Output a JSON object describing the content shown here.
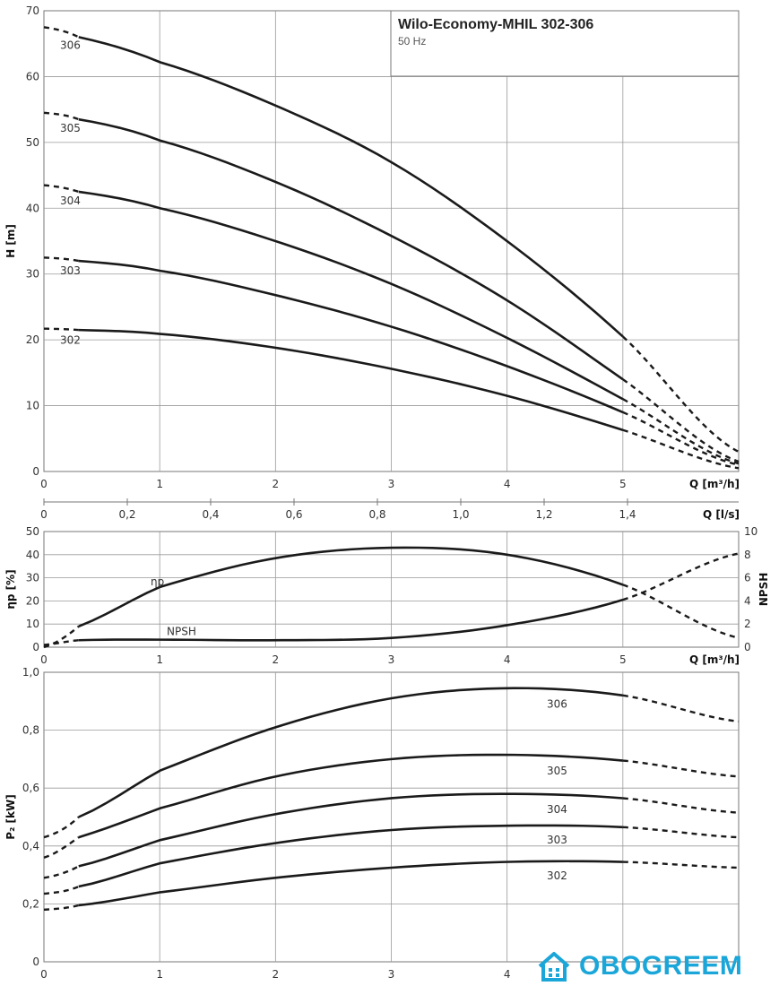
{
  "title": "Wilo-Economy-MHIL 302-306",
  "subtitle": "50 Hz",
  "watermark": "OBOGREEM",
  "colors": {
    "curve": "#1a1a1a",
    "grid": "#9a9a9a",
    "watermark": "#1aa6d9"
  },
  "chart_data": [
    {
      "type": "line",
      "panel": "head",
      "ylabel": "H [m]",
      "xlabel": "Q [m³/h]",
      "xlim": [
        0,
        6
      ],
      "ylim": [
        0,
        70
      ],
      "xticks": [
        0,
        1,
        2,
        3,
        4,
        5
      ],
      "yticks": [
        0,
        10,
        20,
        30,
        40,
        50,
        60,
        70
      ],
      "grid": true,
      "secondary_x": {
        "label": "Q [l/s]",
        "ticks": [
          "0",
          "0,2",
          "0,4",
          "0,6",
          "0,8",
          "1,0",
          "1,2",
          "1,4"
        ],
        "tick_values": [
          0,
          0.2,
          0.4,
          0.6,
          0.8,
          1.0,
          1.2,
          1.4
        ]
      },
      "series": [
        {
          "name": "306",
          "solid_from": 0.3,
          "solid_to": 5,
          "x": [
            0,
            0.3,
            1,
            2,
            3,
            4,
            5,
            6
          ],
          "y": [
            67.5,
            66,
            62.2,
            55.6,
            47,
            35,
            20.5,
            3
          ]
        },
        {
          "name": "305",
          "solid_from": 0.3,
          "solid_to": 5,
          "x": [
            0,
            0.3,
            1,
            2,
            3,
            4,
            5,
            6
          ],
          "y": [
            54.5,
            53.5,
            50.3,
            44,
            35.8,
            26,
            14,
            1.5
          ]
        },
        {
          "name": "304",
          "solid_from": 0.3,
          "solid_to": 5,
          "x": [
            0,
            0.3,
            1,
            2,
            3,
            4,
            5,
            6
          ],
          "y": [
            43.5,
            42.5,
            40,
            35,
            28.5,
            20.3,
            11,
            1.2
          ]
        },
        {
          "name": "303",
          "solid_from": 0.3,
          "solid_to": 5,
          "x": [
            0,
            0.3,
            1,
            2,
            3,
            4,
            5,
            6
          ],
          "y": [
            32.5,
            32,
            30.5,
            26.8,
            22,
            16,
            9,
            1
          ]
        },
        {
          "name": "302",
          "solid_from": 0.3,
          "solid_to": 5,
          "x": [
            0,
            0.3,
            1,
            2,
            3,
            4,
            5,
            6
          ],
          "y": [
            21.7,
            21.5,
            20.9,
            18.8,
            15.6,
            11.5,
            6.3,
            0.5
          ]
        }
      ]
    },
    {
      "type": "line",
      "panel": "efficiency-npsh",
      "ylabel": "ηp [%]",
      "y2label": "NPSH",
      "xlabel": "Q [m³/h]",
      "xlim": [
        0,
        6
      ],
      "ylim": [
        0,
        50
      ],
      "y2lim": [
        0,
        10
      ],
      "xticks": [
        0,
        1,
        2,
        3,
        4,
        5
      ],
      "yticks": [
        0,
        10,
        20,
        30,
        40,
        50
      ],
      "y2ticks": [
        0,
        2,
        4,
        6,
        8,
        10
      ],
      "grid": true,
      "series": [
        {
          "name": "ηp",
          "axis": "left",
          "solid_from": 0.3,
          "solid_to": 5,
          "x": [
            0,
            0.3,
            1,
            2,
            3,
            4,
            5,
            6
          ],
          "y": [
            0,
            9,
            26,
            38.5,
            43,
            40,
            27,
            4
          ]
        },
        {
          "name": "NPSH",
          "axis": "right",
          "solid_from": 0.3,
          "solid_to": 5,
          "x": [
            0,
            0.3,
            1,
            2,
            3,
            4,
            5,
            6
          ],
          "y": [
            0.2,
            0.6,
            0.65,
            0.6,
            0.8,
            1.9,
            4.1,
            8.1
          ]
        }
      ]
    },
    {
      "type": "line",
      "panel": "power",
      "ylabel": "P₂ [kW]",
      "xlabel": "",
      "xlim": [
        0,
        6
      ],
      "ylim": [
        0,
        1.0
      ],
      "xticks": [
        0,
        1,
        2,
        3,
        4
      ],
      "yticks": [
        "0",
        "0,2",
        "0,4",
        "0,6",
        "0,8",
        "1,0"
      ],
      "ytick_values": [
        0,
        0.2,
        0.4,
        0.6,
        0.8,
        1.0
      ],
      "grid": true,
      "series": [
        {
          "name": "306",
          "solid_from": 0.3,
          "solid_to": 5,
          "x": [
            0,
            0.3,
            1,
            2,
            3,
            4,
            5,
            6
          ],
          "y": [
            0.43,
            0.5,
            0.66,
            0.81,
            0.91,
            0.945,
            0.92,
            0.83
          ]
        },
        {
          "name": "305",
          "solid_from": 0.3,
          "solid_to": 5,
          "x": [
            0,
            0.3,
            1,
            2,
            3,
            4,
            5,
            6
          ],
          "y": [
            0.36,
            0.43,
            0.53,
            0.64,
            0.7,
            0.715,
            0.695,
            0.64
          ]
        },
        {
          "name": "304",
          "solid_from": 0.3,
          "solid_to": 5,
          "x": [
            0,
            0.3,
            1,
            2,
            3,
            4,
            5,
            6
          ],
          "y": [
            0.29,
            0.33,
            0.42,
            0.51,
            0.565,
            0.58,
            0.565,
            0.515
          ]
        },
        {
          "name": "303",
          "solid_from": 0.3,
          "solid_to": 5,
          "x": [
            0,
            0.3,
            1,
            2,
            3,
            4,
            5,
            6
          ],
          "y": [
            0.235,
            0.26,
            0.34,
            0.41,
            0.455,
            0.47,
            0.465,
            0.43
          ]
        },
        {
          "name": "302",
          "solid_from": 0.3,
          "solid_to": 5,
          "x": [
            0,
            0.3,
            1,
            2,
            3,
            4,
            5,
            6
          ],
          "y": [
            0.18,
            0.195,
            0.24,
            0.29,
            0.325,
            0.345,
            0.345,
            0.325
          ]
        }
      ]
    }
  ]
}
